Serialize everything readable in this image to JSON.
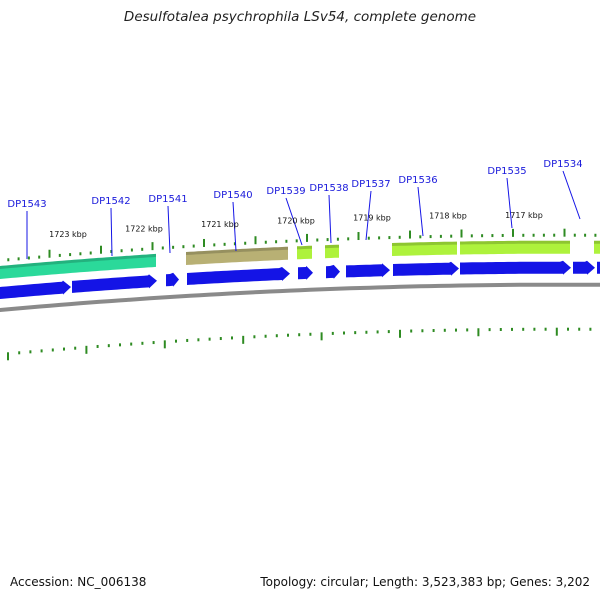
{
  "title": "Desulfotalea psychrophila LSv54, complete genome",
  "accession": "Accession: NC_006138",
  "stats": "Topology: circular; Length: 3,523,383 bp; Genes: 3,202",
  "scale_labels": [
    "1723 kbp",
    "1722 kbp",
    "1721 kbp",
    "1720 kbp",
    "1719 kbp",
    "1718 kbp",
    "1717 kbp"
  ],
  "gene_labels": [
    "DP1543",
    "DP1542",
    "DP1541",
    "DP1540",
    "DP1539",
    "DP1538",
    "DP1537",
    "DP1536",
    "DP1535",
    "DP1534"
  ],
  "colors": {
    "cds": "#1414e6",
    "label": "#1a1adb",
    "backbone": "#8a8a8a",
    "tick": "#2e8b22",
    "teal": "#2bd99a",
    "khaki": "#b8b074",
    "lime": "#aef23c"
  }
}
